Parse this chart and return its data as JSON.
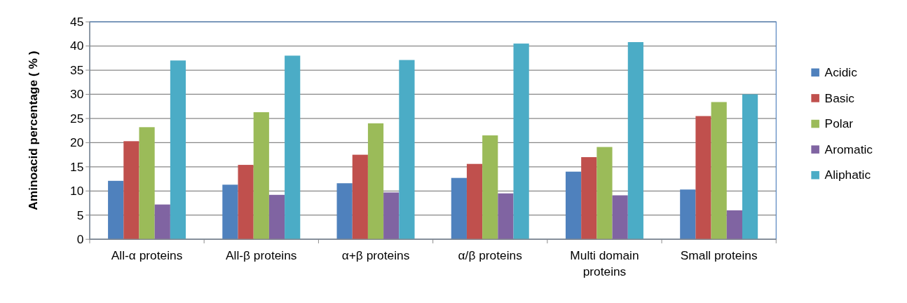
{
  "chart_data": {
    "type": "bar",
    "ylabel": "Aminoacid percentage ( % )",
    "categories": [
      "All-α proteins",
      "All-β proteins",
      "α+β proteins",
      "α/β proteins",
      "Multi domain proteins",
      "Small proteins"
    ],
    "series": [
      {
        "name": "Acidic",
        "color": "#4f81bd",
        "values": [
          12.1,
          11.3,
          11.6,
          12.7,
          14.0,
          10.3
        ]
      },
      {
        "name": "Basic",
        "color": "#c0504d",
        "values": [
          20.3,
          15.4,
          17.5,
          15.6,
          17.0,
          25.5
        ]
      },
      {
        "name": "Polar",
        "color": "#9bbb59",
        "values": [
          23.2,
          26.3,
          24.0,
          21.5,
          19.1,
          28.4
        ]
      },
      {
        "name": "Aromatic",
        "color": "#8064a2",
        "values": [
          7.2,
          9.2,
          9.7,
          9.5,
          9.1,
          6.0
        ]
      },
      {
        "name": "Aliphatic",
        "color": "#4bacc6",
        "values": [
          37.0,
          38.0,
          37.1,
          40.5,
          40.8,
          30.0
        ]
      }
    ],
    "ylim": [
      0,
      45
    ],
    "yticks": [
      0,
      5,
      10,
      15,
      20,
      25,
      30,
      35,
      40,
      45
    ],
    "grid": "y",
    "legend": "right"
  }
}
